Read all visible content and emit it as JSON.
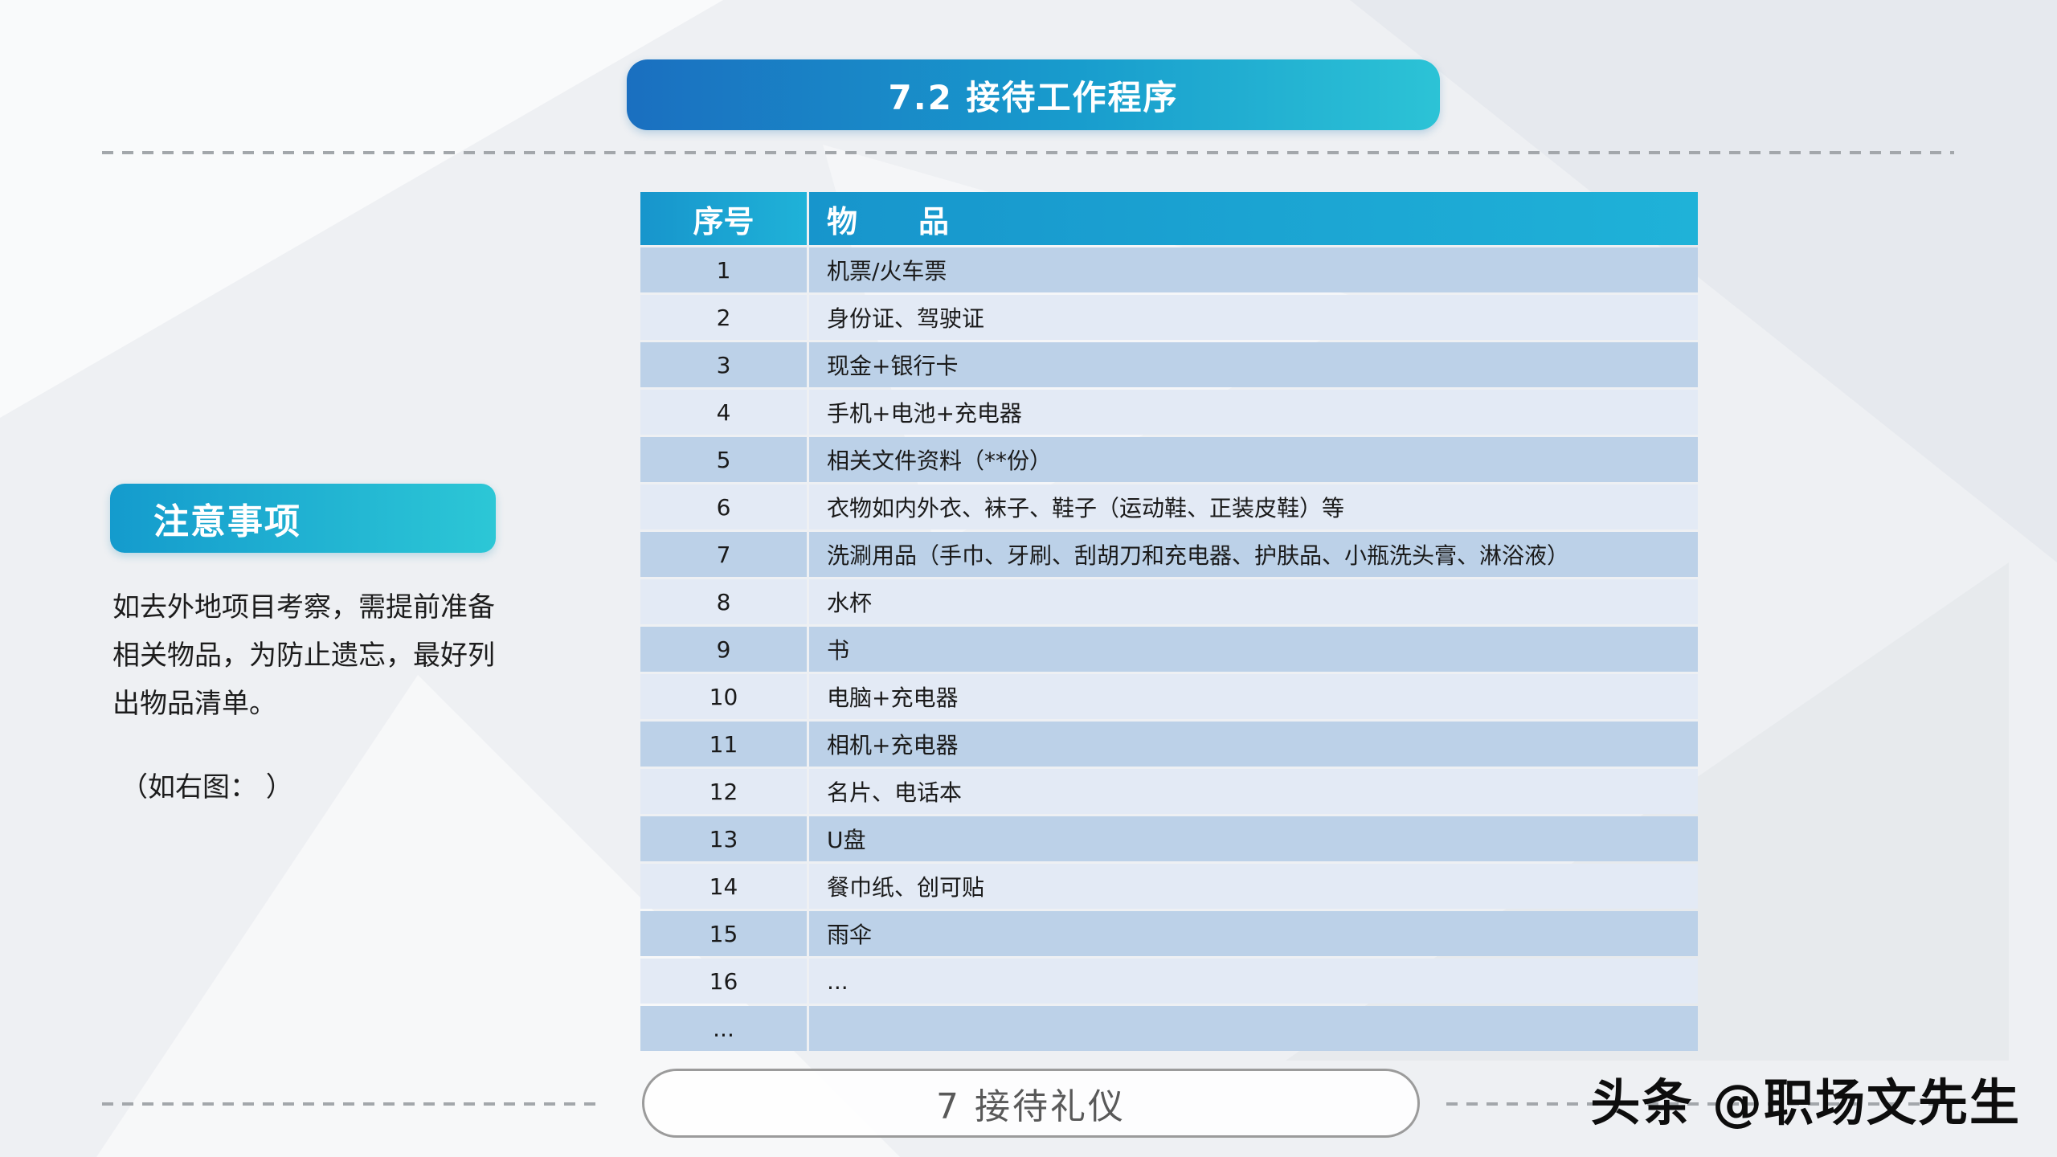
{
  "title": "7.2  接待工作程序",
  "note": {
    "label": "注意事项",
    "body": "如去外地项目考察，需提前准备\n相关物品，为防止遗忘，最好列\n出物品清单。",
    "caption": "（如右图：  ）"
  },
  "table": {
    "col1_header": "序号",
    "col2_header": "物　　品",
    "rows": [
      [
        "1",
        "机票/火车票"
      ],
      [
        "2",
        "身份证、驾驶证"
      ],
      [
        "3",
        "现金+银行卡"
      ],
      [
        "4",
        "手机+电池+充电器"
      ],
      [
        "5",
        "相关文件资料（**份）"
      ],
      [
        "6",
        "衣物如内外衣、袜子、鞋子（运动鞋、正装皮鞋）等"
      ],
      [
        "7",
        "洗涮用品（手巾、牙刷、刮胡刀和充电器、护肤品、小瓶洗头膏、淋浴液）"
      ],
      [
        "8",
        "水杯"
      ],
      [
        "9",
        "书"
      ],
      [
        "10",
        "电脑+充电器"
      ],
      [
        "11",
        "相机+充电器"
      ],
      [
        "12",
        "名片、电话本"
      ],
      [
        "13",
        "U盘"
      ],
      [
        "14",
        "餐巾纸、创可贴"
      ],
      [
        "15",
        "雨伞"
      ],
      [
        "16",
        "..."
      ],
      [
        "...",
        ""
      ]
    ]
  },
  "footer": {
    "badge": "7  接待礼仪",
    "watermark": "头条 @职场文先生"
  },
  "colors": {
    "banner_gradient_start": "#1a6fc0",
    "banner_gradient_end": "#2cc3d6",
    "table_header": "#1aa0d2",
    "row_dark": "#bcd1e8",
    "row_light": "#e3eaf5"
  }
}
